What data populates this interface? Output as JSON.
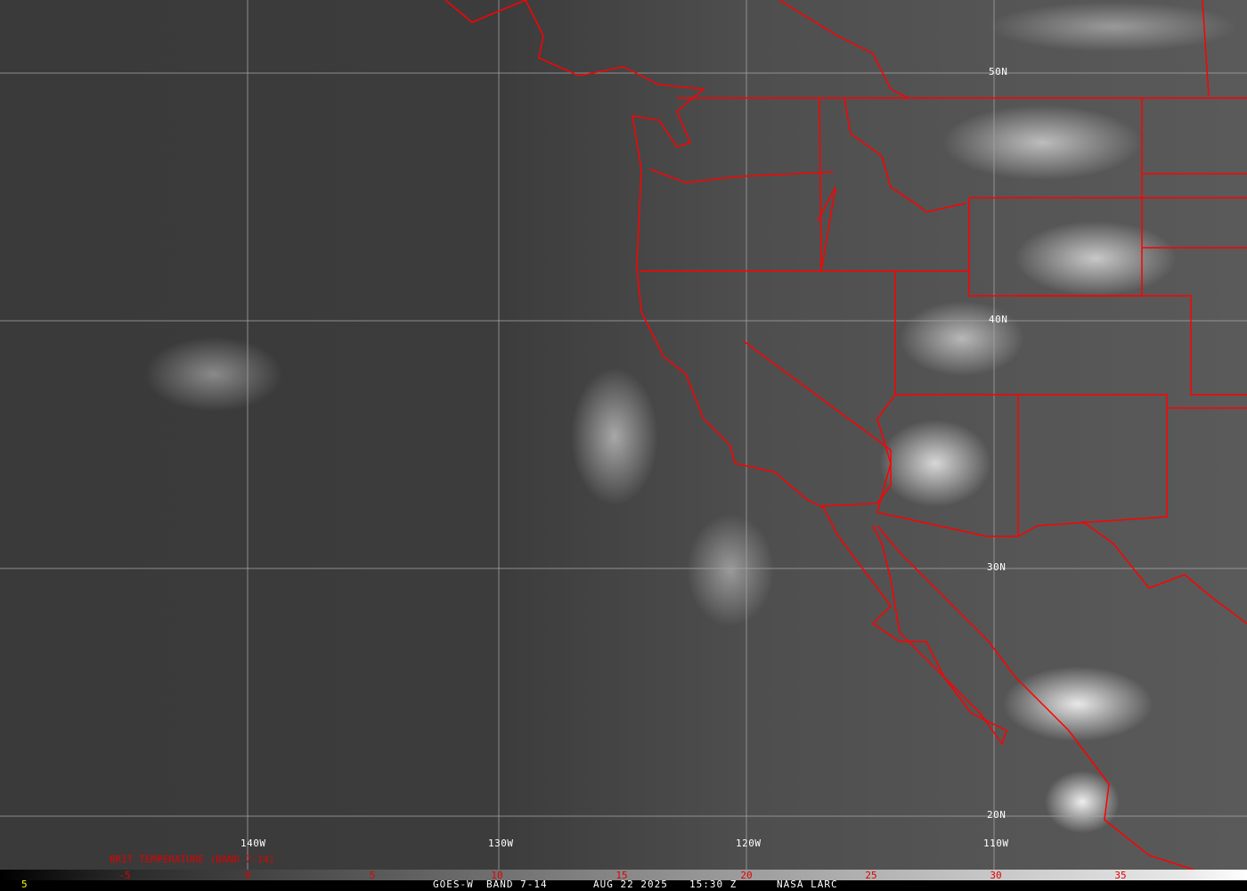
{
  "image": {
    "satellite": "GOES-W",
    "band": "BAND 7-14",
    "date": "AUG 22 2025",
    "time": "15:30 Z",
    "credit": "NASA LARC",
    "frame_number": "5"
  },
  "grid_labels": {
    "lat": [
      "50N",
      "40N",
      "30N",
      "20N"
    ],
    "lon": [
      "140W",
      "130W",
      "120W",
      "110W"
    ]
  },
  "legend": {
    "title": "BRIT TEMPERATURE (BAND 7-14)",
    "ticks": [
      "-5",
      "0",
      "5",
      "10",
      "15",
      "20",
      "25",
      "30",
      "35"
    ]
  },
  "colors": {
    "borders": "#ff0000",
    "grid": "#a8a8a8",
    "legend_text": "#e00000",
    "frame_number": "#ffff00"
  }
}
